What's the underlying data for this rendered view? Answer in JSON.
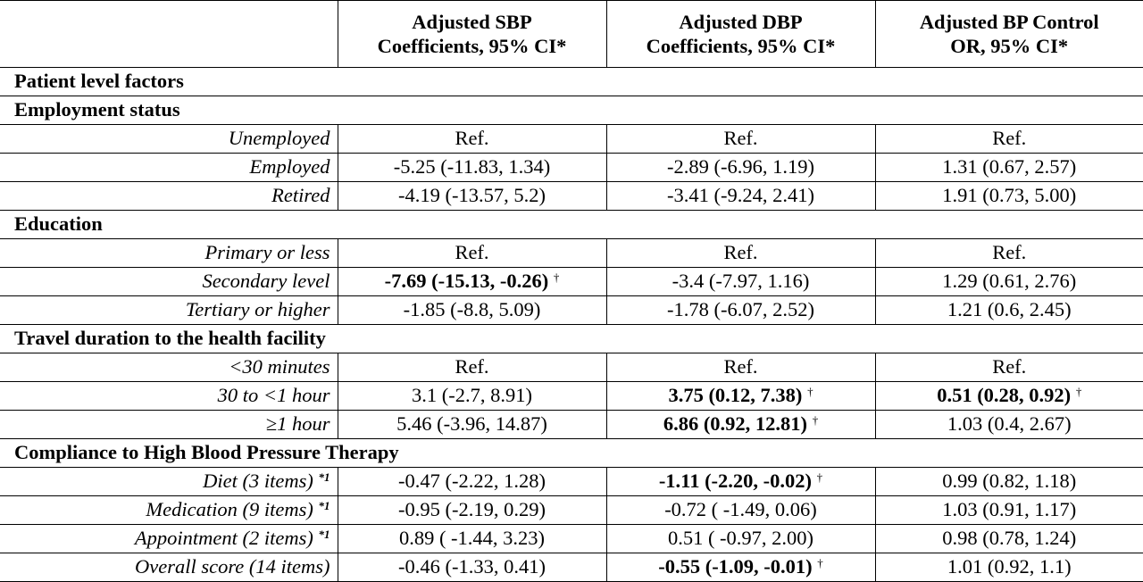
{
  "headers": {
    "col1": "",
    "col2_line1": "Adjusted SBP",
    "col2_line2": "Coefficients, 95% CI*",
    "col3_line1": "Adjusted DBP",
    "col3_line2": "Coefficients, 95% CI*",
    "col4_line1": "Adjusted BP Control",
    "col4_line2": "OR, 95% CI*"
  },
  "rows": [
    {
      "type": "section",
      "label": "Patient level factors"
    },
    {
      "type": "section",
      "label": "Employment status"
    },
    {
      "type": "data",
      "label": "Unemployed",
      "label_sup": "",
      "sbp": "Ref.",
      "sbp_bold": false,
      "sbp_sup": "",
      "dbp": "Ref.",
      "dbp_bold": false,
      "dbp_sup": "",
      "or": "Ref.",
      "or_bold": false,
      "or_sup": ""
    },
    {
      "type": "data",
      "label": "Employed",
      "label_sup": "",
      "sbp": "-5.25 (-11.83, 1.34)",
      "sbp_bold": false,
      "sbp_sup": "",
      "dbp": "-2.89 (-6.96, 1.19)",
      "dbp_bold": false,
      "dbp_sup": "",
      "or": "1.31 (0.67, 2.57)",
      "or_bold": false,
      "or_sup": ""
    },
    {
      "type": "data",
      "label": "Retired",
      "label_sup": "",
      "sbp": "-4.19 (-13.57, 5.2)",
      "sbp_bold": false,
      "sbp_sup": "",
      "dbp": "-3.41 (-9.24, 2.41)",
      "dbp_bold": false,
      "dbp_sup": "",
      "or": "1.91 (0.73, 5.00)",
      "or_bold": false,
      "or_sup": ""
    },
    {
      "type": "section",
      "label": "Education"
    },
    {
      "type": "data",
      "label": "Primary or less",
      "label_sup": "",
      "sbp": "Ref.",
      "sbp_bold": false,
      "sbp_sup": "",
      "dbp": "Ref.",
      "dbp_bold": false,
      "dbp_sup": "",
      "or": "Ref.",
      "or_bold": false,
      "or_sup": ""
    },
    {
      "type": "data",
      "label": "Secondary level",
      "label_sup": "",
      "sbp": "-7.69 (-15.13, -0.26)",
      "sbp_bold": true,
      "sbp_sup": "†",
      "dbp": "-3.4 (-7.97, 1.16)",
      "dbp_bold": false,
      "dbp_sup": "",
      "or": "1.29 (0.61, 2.76)",
      "or_bold": false,
      "or_sup": ""
    },
    {
      "type": "data",
      "label": "Tertiary or higher",
      "label_sup": "",
      "sbp": "-1.85 (-8.8, 5.09)",
      "sbp_bold": false,
      "sbp_sup": "",
      "dbp": "-1.78 (-6.07, 2.52)",
      "dbp_bold": false,
      "dbp_sup": "",
      "or": "1.21 (0.6, 2.45)",
      "or_bold": false,
      "or_sup": ""
    },
    {
      "type": "section",
      "label": "Travel duration to the health facility"
    },
    {
      "type": "data",
      "label": "<30 minutes",
      "label_sup": "",
      "sbp": "Ref.",
      "sbp_bold": false,
      "sbp_sup": "",
      "dbp": "Ref.",
      "dbp_bold": false,
      "dbp_sup": "",
      "or": "Ref.",
      "or_bold": false,
      "or_sup": ""
    },
    {
      "type": "data",
      "label": "30 to <1 hour",
      "label_sup": "",
      "sbp": "3.1 (-2.7, 8.91)",
      "sbp_bold": false,
      "sbp_sup": "",
      "dbp": "3.75 (0.12, 7.38)",
      "dbp_bold": true,
      "dbp_sup": "†",
      "or": "0.51 (0.28, 0.92)",
      "or_bold": true,
      "or_sup": "†"
    },
    {
      "type": "data",
      "label": "≥1 hour",
      "label_sup": "",
      "sbp": "5.46 (-3.96, 14.87)",
      "sbp_bold": false,
      "sbp_sup": "",
      "dbp": "6.86 (0.92, 12.81)",
      "dbp_bold": true,
      "dbp_sup": "†",
      "or": "1.03 (0.4, 2.67)",
      "or_bold": false,
      "or_sup": ""
    },
    {
      "type": "section",
      "label": "Compliance to High Blood Pressure Therapy"
    },
    {
      "type": "data",
      "label": "Diet (3 items) ",
      "label_sup": "*1",
      "sbp": "-0.47 (-2.22, 1.28)",
      "sbp_bold": false,
      "sbp_sup": "",
      "dbp": "-1.11 (-2.20, -0.02)",
      "dbp_bold": true,
      "dbp_sup": "†",
      "or": "0.99 (0.82, 1.18)",
      "or_bold": false,
      "or_sup": ""
    },
    {
      "type": "data",
      "label": "Medication (9 items) ",
      "label_sup": "*1",
      "sbp": "-0.95 (-2.19, 0.29)",
      "sbp_bold": false,
      "sbp_sup": "",
      "dbp": "-0.72 ( -1.49, 0.06)",
      "dbp_bold": false,
      "dbp_sup": "",
      "or": "1.03 (0.91, 1.17)",
      "or_bold": false,
      "or_sup": ""
    },
    {
      "type": "data",
      "label": "Appointment (2 items) ",
      "label_sup": "*1",
      "sbp": "0.89 ( -1.44, 3.23)",
      "sbp_bold": false,
      "sbp_sup": "",
      "dbp": "0.51 ( -0.97, 2.00)",
      "dbp_bold": false,
      "dbp_sup": "",
      "or": "0.98 (0.78, 1.24)",
      "or_bold": false,
      "or_sup": ""
    },
    {
      "type": "data",
      "label": "Overall score (14 items)",
      "label_sup": "",
      "sbp": "-0.46 (-1.33, 0.41)",
      "sbp_bold": false,
      "sbp_sup": "",
      "dbp": "-0.55 (-1.09, -0.01)",
      "dbp_bold": true,
      "dbp_sup": "†",
      "or": "1.01 (0.92, 1.1)",
      "or_bold": false,
      "or_sup": ""
    }
  ]
}
